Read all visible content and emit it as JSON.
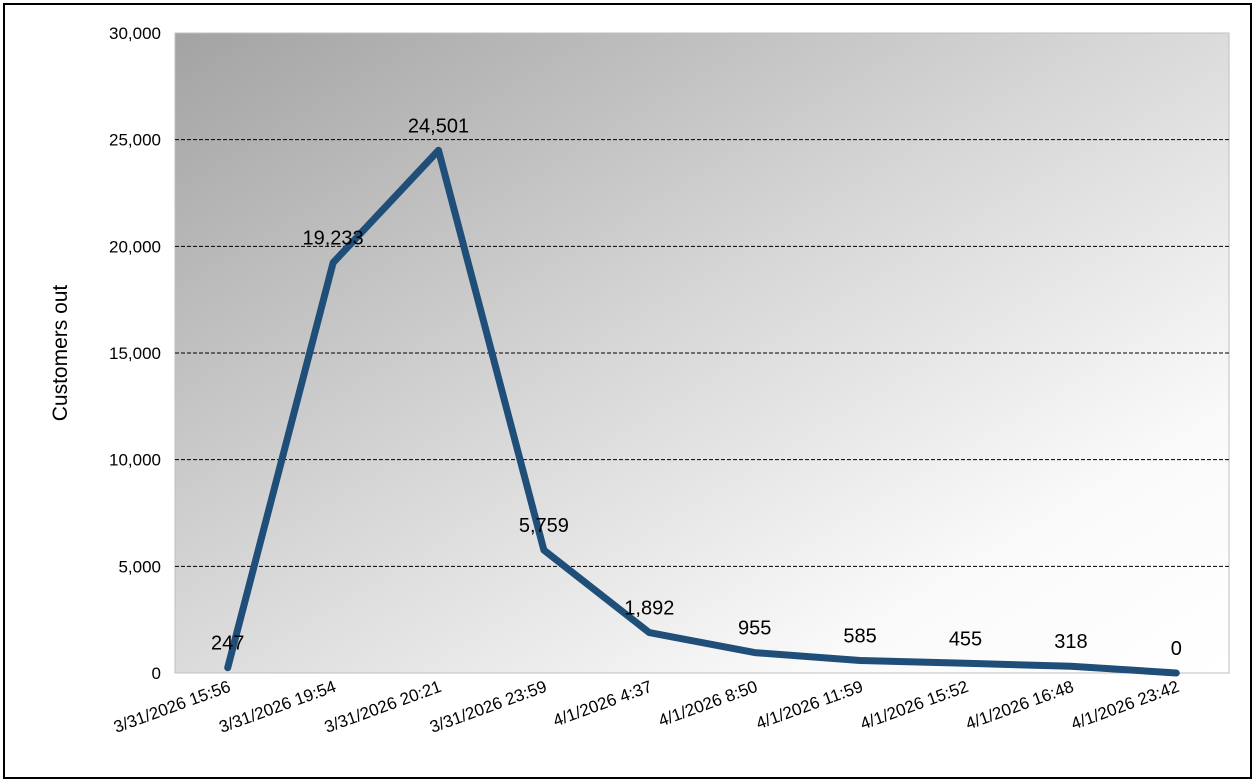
{
  "chart_data": {
    "type": "line",
    "title": "",
    "xlabel": "",
    "ylabel": "Customers out",
    "categories": [
      "3/31/2026 15:56",
      "3/31/2026 19:54",
      "3/31/2026 20:21",
      "3/31/2026 23:59",
      "4/1/2026 4:37",
      "4/1/2026 8:50",
      "4/1/2026 11:59",
      "4/1/2026 15:52",
      "4/1/2026 16:48",
      "4/1/2026 23:42"
    ],
    "series": [
      {
        "values": [
          247,
          19233,
          24501,
          5759,
          1892,
          955,
          585,
          455,
          318,
          0
        ],
        "data_labels": [
          "247",
          "19,233",
          "24,501",
          "5,759",
          "1,892",
          "955",
          "585",
          "455",
          "318",
          "0"
        ],
        "color": "#1F4E79"
      }
    ],
    "ylim": [
      0,
      30000
    ],
    "yticks": [
      0,
      5000,
      10000,
      15000,
      20000,
      25000,
      30000
    ],
    "ytick_labels": [
      "0",
      "5,000",
      "10,000",
      "15,000",
      "20,000",
      "25,000",
      "30,000"
    ],
    "grid": "horizontal dashed",
    "legend": "none",
    "plot_background": "gradient dark gray (top-left) to white (bottom-right)"
  }
}
